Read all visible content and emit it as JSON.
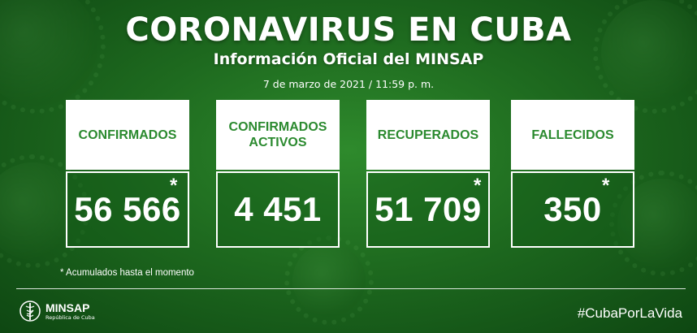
{
  "header": {
    "title": "CORONAVIRUS EN CUBA",
    "subtitle": "Información Oficial del MINSAP",
    "date": "7 de marzo de 2021 / 11:59 p. m."
  },
  "cards": [
    {
      "label": "CONFIRMADOS",
      "value": "56 566",
      "asterisk": "*"
    },
    {
      "label_line1": "CONFIRMADOS",
      "label_line2": "ACTIVOS",
      "value": "4 451"
    },
    {
      "label": "RECUPERADOS",
      "value": "51 709",
      "asterisk": "*"
    },
    {
      "label": "FALLECIDOS",
      "value": "350",
      "asterisk": "*"
    }
  ],
  "footnote": "* Acumulados hasta el momento",
  "footer": {
    "logo_name": "MINSAP",
    "logo_sub": "República de Cuba",
    "hashtag": "#CubaPorLaVida"
  },
  "colors": {
    "background": "#1e6a1f",
    "label_green": "#2b8a2f",
    "white": "#ffffff"
  }
}
